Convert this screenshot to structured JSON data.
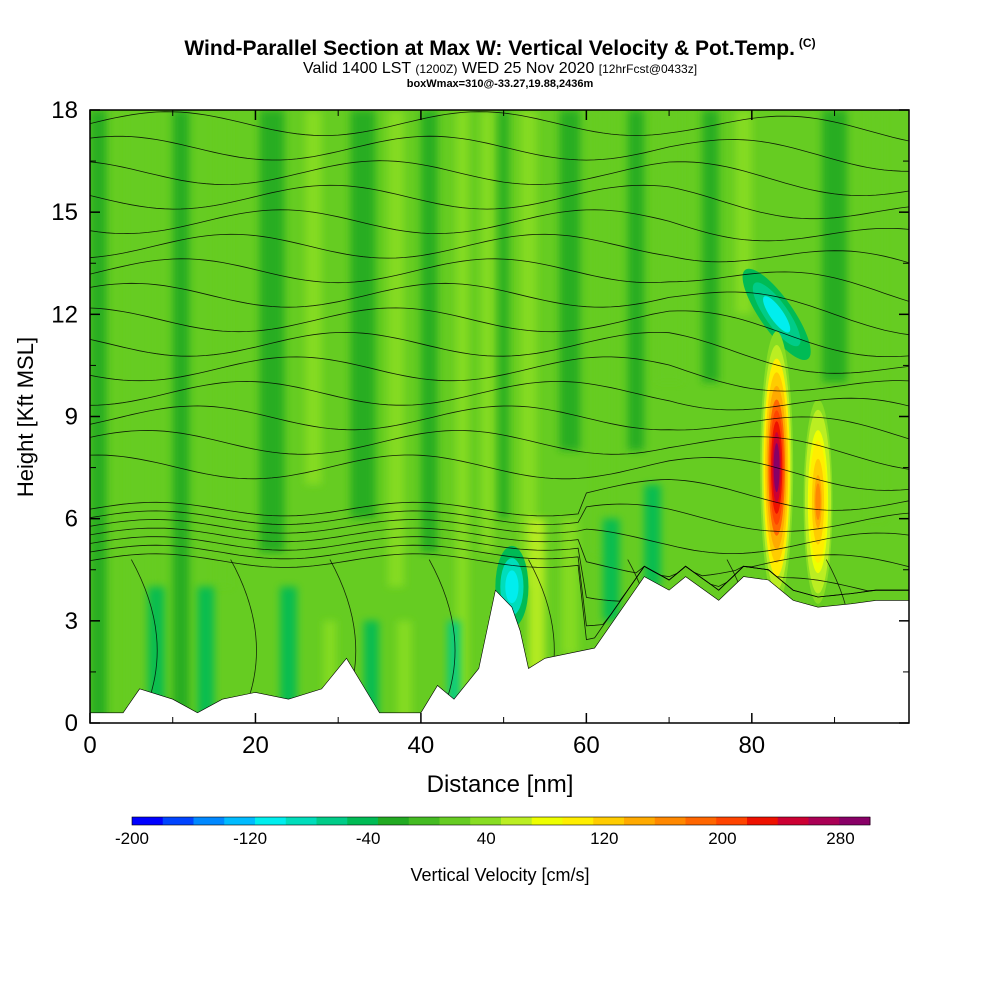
{
  "header": {
    "title": "Wind-Parallel Section at Max W: Vertical Velocity & Pot.Temp.",
    "copyright": "(C)",
    "valid_prefix": "Valid 1400 LST",
    "valid_utc": "(1200Z)",
    "valid_date": "WED 25 Nov 2020",
    "forecast": "[12hrFcst@0433z]",
    "box_info": "boxWmax=310@-33.27,19.88,2436m"
  },
  "chart_data": {
    "type": "heatmap",
    "xlabel": "Distance [nm]",
    "ylabel": "Height [Kft MSL]",
    "xlim": [
      0,
      99
    ],
    "ylim": [
      0,
      18
    ],
    "x_ticks": [
      "0",
      "20",
      "40",
      "60",
      "80"
    ],
    "y_ticks": [
      "0",
      "3",
      "6",
      "9",
      "12",
      "15",
      "18"
    ],
    "colorbar": {
      "label": "Vertical Velocity [cm/s]",
      "range": [
        -200,
        300
      ],
      "tick_labels": [
        "-200",
        "-120",
        "-40",
        "40",
        "120",
        "200",
        "280"
      ],
      "colors": [
        "#0000ff",
        "#0044ff",
        "#0088ff",
        "#00bbff",
        "#00eeee",
        "#00ddbb",
        "#00cc88",
        "#00bb55",
        "#22aa22",
        "#44bb22",
        "#66cc22",
        "#88dd22",
        "#bbee22",
        "#eeff00",
        "#ffee00",
        "#ffcc00",
        "#ffaa00",
        "#ff8800",
        "#ff6600",
        "#ff4400",
        "#ee1100",
        "#cc0033",
        "#aa0055",
        "#880066"
      ]
    },
    "terrain_kft": [
      [
        0,
        0.3
      ],
      [
        4,
        0.3
      ],
      [
        6,
        1.0
      ],
      [
        10,
        0.7
      ],
      [
        13,
        0.3
      ],
      [
        16,
        0.7
      ],
      [
        20,
        0.9
      ],
      [
        24,
        0.7
      ],
      [
        28,
        1.0
      ],
      [
        31,
        1.9
      ],
      [
        33,
        1.1
      ],
      [
        35,
        0.3
      ],
      [
        40,
        0.3
      ],
      [
        42,
        1.1
      ],
      [
        44,
        0.7
      ],
      [
        47,
        1.6
      ],
      [
        49,
        3.9
      ],
      [
        51,
        3.4
      ],
      [
        52,
        2.7
      ],
      [
        53,
        1.6
      ],
      [
        55,
        1.9
      ],
      [
        61,
        2.2
      ],
      [
        65,
        3.6
      ],
      [
        67,
        4.3
      ],
      [
        70,
        3.9
      ],
      [
        72,
        4.3
      ],
      [
        76,
        3.6
      ],
      [
        79,
        4.3
      ],
      [
        82,
        4.2
      ],
      [
        85,
        3.6
      ],
      [
        88,
        3.4
      ],
      [
        92,
        3.5
      ],
      [
        95,
        3.6
      ],
      [
        99,
        3.6
      ]
    ],
    "updrafts": [
      {
        "x": 83,
        "z": 7.5,
        "peak_cm_s": 310
      },
      {
        "x": 88,
        "z": 6.5,
        "peak_cm_s": 170
      }
    ],
    "downdrafts": [
      {
        "x": 51,
        "z": 4.0,
        "peak_cm_s": -110
      },
      {
        "x": 83,
        "z": 12.0,
        "peak_cm_s": -100
      }
    ],
    "theta_contours_k": [
      "338",
      "336",
      "334",
      "332",
      "330",
      "328",
      "326",
      "324",
      "322",
      "320",
      "318",
      "316",
      "314",
      "312",
      "310",
      "308"
    ]
  }
}
